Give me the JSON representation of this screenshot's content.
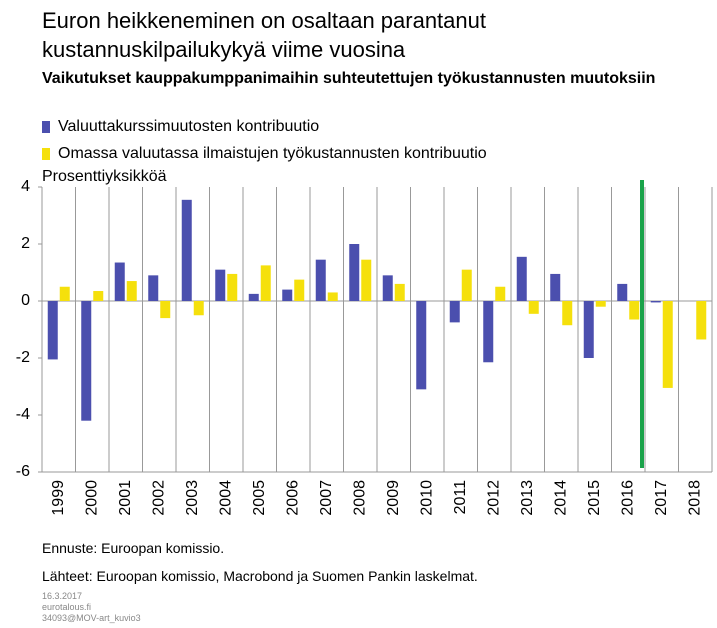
{
  "chart_data": {
    "type": "bar",
    "title": "Euron heikkeneminen on osaltaan parantanut kustannuskilpailukykyä viime vuosina",
    "subtitle": "Vaikutukset kauppakumppanimaihin suhteutettujen työkustannusten muutoksiin",
    "ylabel": "Prosenttiyksikköä",
    "categories": [
      "1999",
      "2000",
      "2001",
      "2002",
      "2003",
      "2004",
      "2005",
      "2006",
      "2007",
      "2008",
      "2009",
      "2010",
      "2011",
      "2012",
      "2013",
      "2014",
      "2015",
      "2016",
      "2017",
      "2018"
    ],
    "series": [
      {
        "name": "Valuuttakurssimuutosten kontribuutio",
        "color": "#4b4fae",
        "values": [
          -2.05,
          -4.2,
          1.35,
          0.9,
          3.55,
          1.1,
          0.25,
          0.4,
          1.45,
          2.0,
          0.9,
          -3.1,
          -0.75,
          -2.15,
          1.55,
          0.95,
          -2.0,
          0.6,
          -0.05,
          0
        ]
      },
      {
        "name": "Omassa valuutassa ilmaistujen työkustannusten kontribuutio",
        "color": "#f5e00c",
        "values": [
          0.5,
          0.35,
          0.7,
          -0.6,
          -0.5,
          0.95,
          1.25,
          0.75,
          0.3,
          1.45,
          0.6,
          0.0,
          1.1,
          0.5,
          -0.45,
          -0.85,
          -0.2,
          -0.65,
          -3.05,
          -1.35
        ]
      }
    ],
    "ylim": [
      -6,
      4
    ],
    "yticks": [
      -6,
      -4,
      -2,
      0,
      2,
      4
    ],
    "grid": true,
    "note": "Ennuste: Euroopan komissio.",
    "source": "Lähteet: Euroopan komissio, Macrobond ja Suomen Pankin laskelmat.",
    "footer": [
      "16.3.2017",
      "eurotalous.fi",
      "34093@MOV-art_kuvio3"
    ]
  }
}
